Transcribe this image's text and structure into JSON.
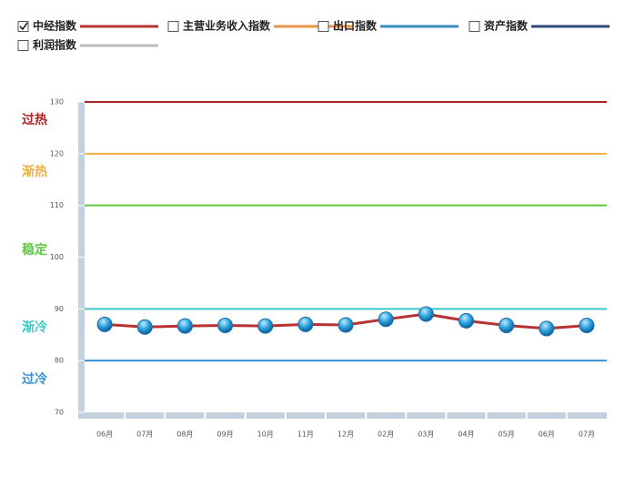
{
  "chart_data": {
    "type": "line",
    "categories": [
      "06月",
      "07月",
      "08月",
      "09月",
      "10月",
      "11月",
      "12月",
      "02月",
      "03月",
      "04月",
      "05月",
      "06月",
      "07月"
    ],
    "series": [
      {
        "name": "中经指数",
        "color": "#b83232",
        "checked": true,
        "values": [
          87,
          86.5,
          86.7,
          86.8,
          86.7,
          87,
          86.9,
          88,
          89,
          87.7,
          86.8,
          86.2,
          86.8
        ]
      },
      {
        "name": "主营业务收入指数",
        "color": "#e8954a",
        "checked": false
      },
      {
        "name": "出口指数",
        "color": "#3a8fc0",
        "checked": false
      },
      {
        "name": "资产指数",
        "color": "#2e4a72",
        "checked": false
      },
      {
        "name": "利润指数",
        "color": "#bbbbbb",
        "checked": false
      }
    ],
    "zones": [
      {
        "label": "过热",
        "line": 130,
        "color": "#b22222"
      },
      {
        "label": "渐热",
        "line": 120,
        "color": "#f0b040"
      },
      {
        "label": "稳定",
        "line": 110,
        "color": "#5cc83c"
      },
      {
        "label": "渐冷",
        "line": 90,
        "color": "#3cc8c8"
      },
      {
        "label": "过冷",
        "line": 80,
        "color": "#3a8fd0"
      }
    ],
    "ylim": [
      70,
      130
    ],
    "yticks": [
      70,
      80,
      90,
      100,
      110,
      120,
      130
    ]
  }
}
